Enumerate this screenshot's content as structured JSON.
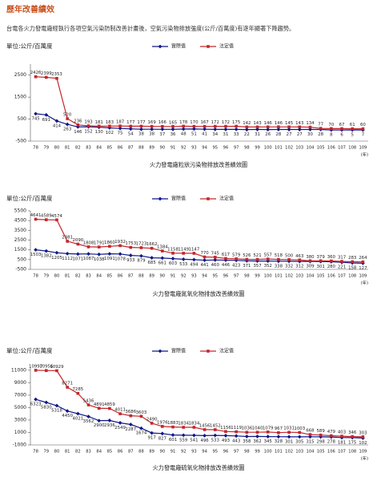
{
  "header": {
    "title": "歷年改善績效",
    "subtitle": "台電各火力發電廠經執行各項空氣污染防制改善計畫後，空氣污染物排放強度(公斤/百萬度)有逐年顯著下降趨勢。"
  },
  "chart_data": [
    {
      "type": "line",
      "unit_label": "單位:公斤/百萬度",
      "x_label": "(年)",
      "caption": "火力發電廠粒狀污染物排放改善績效圖",
      "categories": [
        "78",
        "79",
        "80",
        "81",
        "82",
        "83",
        "84",
        "85",
        "86",
        "87",
        "88",
        "89",
        "90",
        "91",
        "92",
        "93",
        "94",
        "95",
        "96",
        "97",
        "98",
        "99",
        "100",
        "101",
        "102",
        "103",
        "104",
        "105",
        "106",
        "107",
        "108",
        "109"
      ],
      "series": [
        {
          "name": "實際值",
          "color": "#10188a",
          "marker": "diamond",
          "values": [
            745,
            691,
            414,
            263,
            146,
            152,
            130,
            102,
            75,
            54,
            38,
            38,
            37,
            36,
            48,
            51,
            41,
            34,
            31,
            33,
            22,
            31,
            26,
            28,
            27,
            27,
            30,
            28,
            8,
            6,
            5,
            7
          ]
        },
        {
          "name": "法定值",
          "color": "#c4262b",
          "marker": "square",
          "values": [
            2426,
            2399,
            2353,
            520,
            236,
            193,
            181,
            183,
            187,
            177,
            177,
            169,
            166,
            165,
            178,
            170,
            167,
            172,
            172,
            175,
            142,
            143,
            146,
            146,
            145,
            143,
            134,
            77,
            70,
            67,
            61,
            60
          ]
        }
      ],
      "ylim": [
        -500,
        3000
      ],
      "yticks": [
        -500,
        500,
        1500,
        2500
      ]
    },
    {
      "type": "line",
      "unit_label": "單位:公斤/百萬度",
      "x_label": "(年)",
      "caption": "火力發電廠氮氧化物排放改善績效圖",
      "categories": [
        "78",
        "79",
        "80",
        "81",
        "82",
        "83",
        "84",
        "85",
        "86",
        "87",
        "88",
        "89",
        "90",
        "91",
        "92",
        "93",
        "94",
        "95",
        "96",
        "97",
        "98",
        "99",
        "100",
        "101",
        "102",
        "103",
        "104",
        "105",
        "106",
        "107",
        "108",
        "109"
      ],
      "series": [
        {
          "name": "實際值",
          "color": "#10188a",
          "marker": "diamond",
          "values": [
            1503,
            1382,
            1205,
            1112,
            1071,
            1087,
            1038,
            1091,
            1078,
            933,
            879,
            685,
            661,
            603,
            533,
            494,
            441,
            460,
            446,
            423,
            371,
            357,
            352,
            338,
            332,
            312,
            309,
            301,
            280,
            221,
            158,
            127
          ]
        },
        {
          "name": "法定值",
          "color": "#c4262b",
          "marker": "square",
          "values": [
            4641,
            4589,
            4574,
            2381,
            2090,
            1808,
            1791,
            1860,
            1932,
            1753,
            1723,
            1662,
            1384,
            1158,
            1149,
            1147,
            770,
            745,
            617,
            579,
            526,
            521,
            557,
            518,
            500,
            463,
            380,
            379,
            360,
            317,
            283,
            264
          ]
        }
      ],
      "ylim": [
        -500,
        5500
      ],
      "yticks": [
        -500,
        500,
        1500,
        2500,
        3500,
        4500,
        5500
      ]
    },
    {
      "type": "line",
      "unit_label": "單位:公斤/百萬度",
      "x_label": "(年)",
      "caption": "火力發電廠硫氧化物排放改善績效圖",
      "categories": [
        "78",
        "79",
        "80",
        "81",
        "82",
        "83",
        "84",
        "85",
        "86",
        "87",
        "88",
        "89",
        "90",
        "91",
        "92",
        "93",
        "94",
        "95",
        "96",
        "97",
        "98",
        "99",
        "100",
        "101",
        "102",
        "103",
        "104",
        "105",
        "106",
        "107",
        "108",
        "109"
      ],
      "series": [
        {
          "name": "實際值",
          "color": "#10188a",
          "marker": "diamond",
          "values": [
            6323,
            5830,
            5318,
            4450,
            4021,
            3562,
            2900,
            2936,
            2549,
            2287,
            1674,
            917,
            827,
            601,
            559,
            541,
            496,
            533,
            493,
            443,
            358,
            362,
            345,
            328,
            301,
            305,
            315,
            298,
            278,
            181,
            175,
            102
          ]
        },
        {
          "name": "法定值",
          "color": "#c4262b",
          "marker": "square",
          "values": [
            10997,
            10956,
            10929,
            8271,
            7285,
            5436,
            4891,
            4859,
            4011,
            3686,
            3603,
            2490,
            1976,
            1883,
            1834,
            1834,
            1456,
            1452,
            1156,
            1119,
            1036,
            1040,
            1079,
            967,
            1031,
            1003,
            668,
            589,
            479,
            403,
            346,
            303
          ]
        }
      ],
      "ylim": [
        -1000,
        11500
      ],
      "yticks": [
        -1000,
        1000,
        3000,
        5000,
        7000,
        9000,
        11000
      ]
    }
  ]
}
